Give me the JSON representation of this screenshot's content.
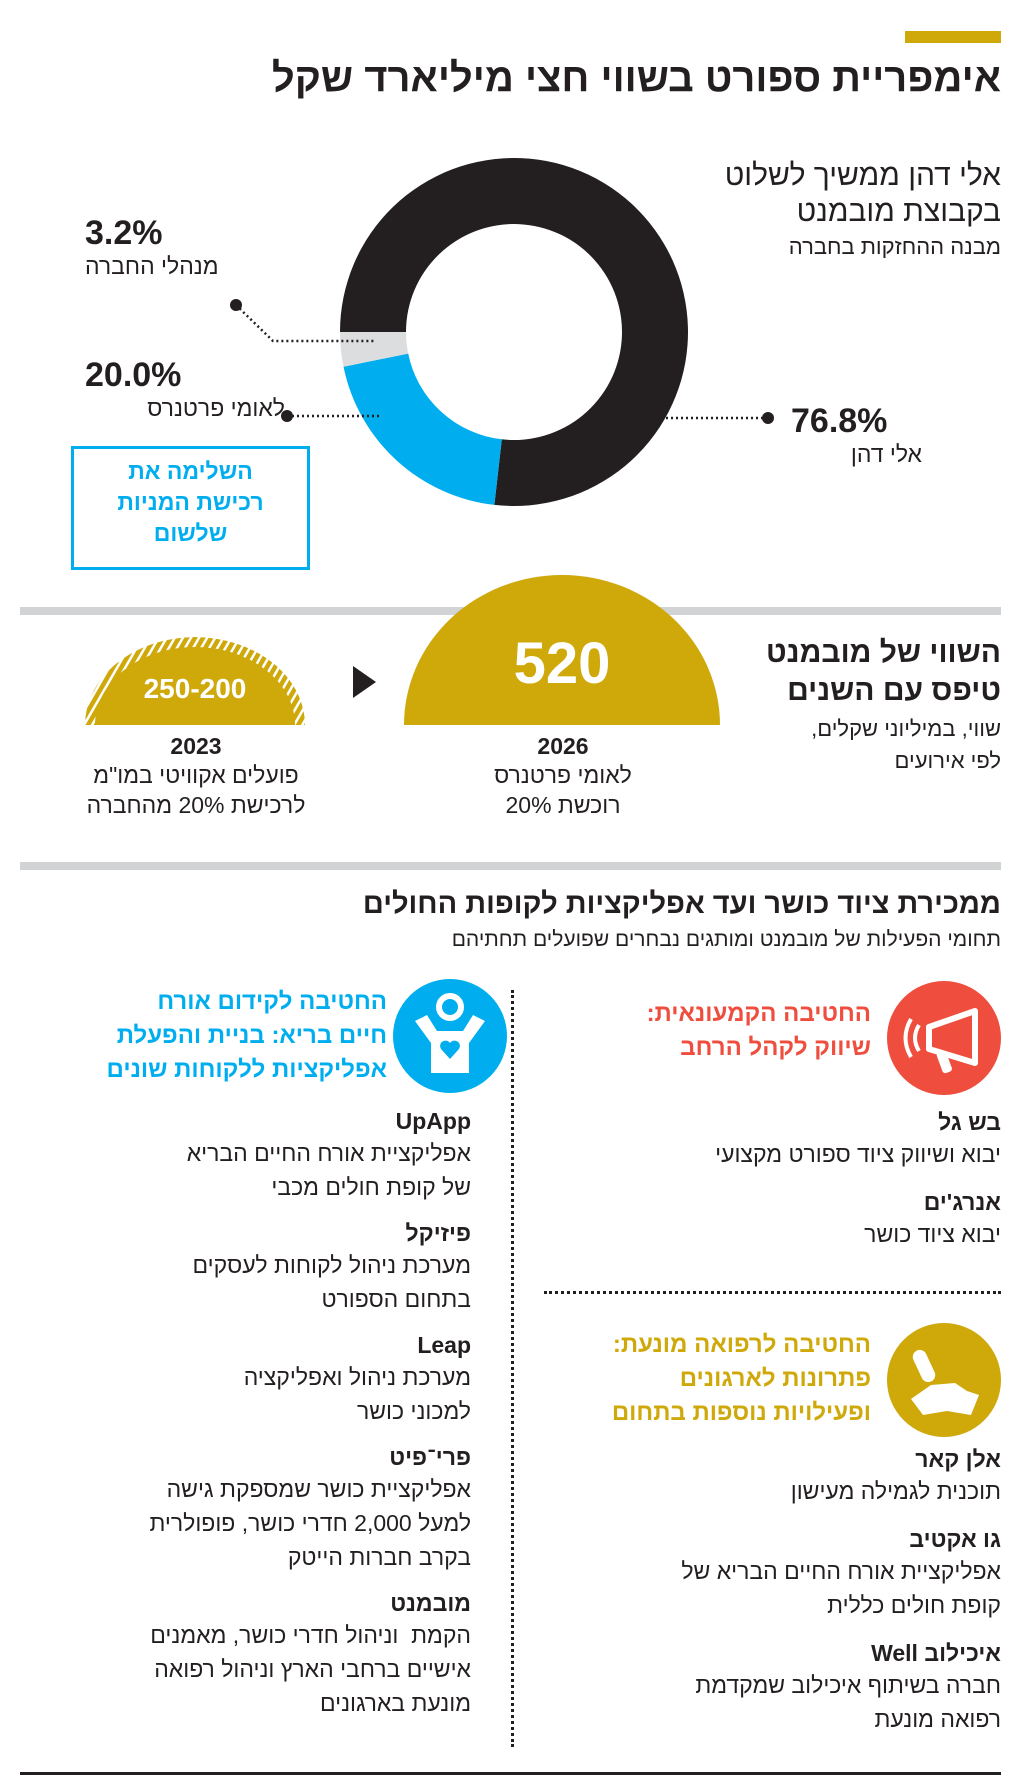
{
  "colors": {
    "gold": "#CFA80A",
    "blue": "#00AEEF",
    "red": "#EF4E3E",
    "black": "#231F20",
    "gray": "#D1D3D4"
  },
  "title": "אימפריית ספורט בשווי חצי מיליארד שקל",
  "holdings": {
    "heading_lines": [
      "אלי דהן ממשיך לשלוט",
      "בקבוצת מובמנט"
    ],
    "subtitle": "מבנה ההחזקות בחברה",
    "note_lines": [
      "השלימה את",
      "רכישת המניות",
      "שלשום"
    ]
  },
  "chart_data": {
    "type": "pie",
    "donut": true,
    "slices": [
      {
        "label": "אלי דהן",
        "value": 76.8,
        "value_label": "76.8%",
        "color": "#231F20"
      },
      {
        "label": "לאומי פרטנרס",
        "value": 20.0,
        "value_label": "20.0%",
        "color": "#00AEEF"
      },
      {
        "label": "מנהלי החברה",
        "value": 3.2,
        "value_label": "3.2%",
        "color": "#DCDDDE"
      }
    ]
  },
  "valuation": {
    "heading_lines": [
      "השווי של מובמנט",
      "טיפס עם השנים"
    ],
    "subtitle_lines": [
      "שווי, במיליוני שקלים,",
      "לפי אירועים"
    ],
    "events": [
      {
        "value": "520",
        "year": "2026",
        "desc_lines": [
          "לאומי פרטנרס",
          "רוכשת 20%"
        ]
      },
      {
        "value": "250-200",
        "year": "2023",
        "desc_lines": [
          "פועלים אקוויטי במו\"מ",
          "לרכישת 20% מהחברה"
        ]
      }
    ]
  },
  "activities": {
    "title": "ממכירת ציוד כושר ועד אפליקציות לקופות החולים",
    "subtitle": "תחומי הפעילות של מובמנט ומותגים נבחרים שפועלים תחתיהם",
    "divisions": [
      {
        "icon": "megaphone-icon",
        "title_lines": [
          "החטיבה הקמעונאית:",
          "שיווק לקהל הרחב"
        ],
        "items": [
          {
            "name": "בש גל",
            "desc_lines": [
              "יבוא ושיווק ציוד ספורט מקצועי"
            ]
          },
          {
            "name": "אנרג'ים",
            "desc_lines": [
              "יבוא ציוד כושר"
            ]
          }
        ]
      },
      {
        "icon": "hand-pill-icon",
        "title_lines": [
          "החטיבה לרפואה מונעת:",
          "פתרונות לארגונים",
          "ופעילויות נוספות בתחום"
        ],
        "items": [
          {
            "name": "אלן קאר",
            "desc_lines": [
              "תוכנית לגמילה מעישון"
            ]
          },
          {
            "name": "גו אקטיב",
            "desc_lines": [
              "אפליקציית אורח החיים הבריא של",
              "קופת חולים כללית"
            ]
          },
          {
            "name": "איכילוב Well",
            "desc_lines": [
              "חברה בשיתוף איכילוב שמקדמת",
              "רפואה מונעת"
            ]
          }
        ]
      },
      {
        "icon": "person-heart-icon",
        "title_lines": [
          "החטיבה לקידום אורח",
          "חיים בריא: בניית והפעלת",
          "אפליקציות ללקוחות שונים"
        ],
        "items": [
          {
            "name": "UpApp",
            "desc_lines": [
              "אפליקציית אורח החיים הבריא",
              "של קופת חולים מכבי"
            ]
          },
          {
            "name": "פיזיקל",
            "desc_lines": [
              "מערכת ניהול לקוחות לעסקים",
              "בתחום הספורט"
            ]
          },
          {
            "name": "Leap",
            "desc_lines": [
              "מערכת ניהול ואפליקציה",
              "למכוני כושר"
            ]
          },
          {
            "name": "פרי־פיט",
            "desc_lines": [
              "אפליקציית כושר שמספקת גישה",
              "למעל 2,000 חדרי כושר, פופולרית",
              "בקרב חברות הייטק"
            ]
          },
          {
            "name": "מובמנט",
            "desc_lines": [
              "הקמת  וניהול חדרי כושר, מאמנים",
              "אישיים ברחבי הארץ וניהול רפואה",
              "מונעת בארגונים"
            ]
          }
        ]
      }
    ]
  }
}
